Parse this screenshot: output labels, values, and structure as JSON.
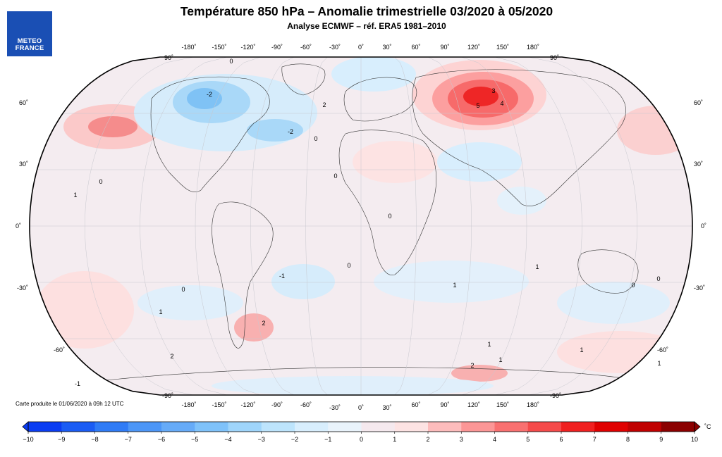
{
  "logo": {
    "line1": "METEO",
    "line2": "FRANCE"
  },
  "title": "Température 850 hPa – Anomalie trimestrielle 03/2020 à 05/2020",
  "subtitle": "Analyse ECMWF – réf. ERA5 1981–2010",
  "credit": "Carte produite le 01/06/2020 à 09h 12 UTC",
  "axes": {
    "lon_labels": [
      "-180˚",
      "-150˚",
      "-120˚",
      "-90˚",
      "-60˚",
      "-30˚",
      "0˚",
      "30˚",
      "60˚",
      "90˚",
      "120˚",
      "150˚",
      "180˚"
    ],
    "lat_labels_left": [
      "90˚",
      "60˚",
      "30˚",
      "0˚",
      "-30˚",
      "-60˚",
      "-90˚"
    ],
    "lat_labels_right": [
      "90˚",
      "60˚",
      "30˚",
      "0˚",
      "-30˚",
      "-60˚",
      "-90˚"
    ]
  },
  "colorbar": {
    "unit": "˚C",
    "labels": [
      "-10",
      "-9",
      "-8",
      "-7",
      "-6",
      "-5",
      "-4",
      "-3",
      "-2",
      "-1",
      "0",
      "1",
      "2",
      "3",
      "4",
      "5",
      "6",
      "7",
      "8",
      "9",
      "10"
    ],
    "colors": [
      "#0a3cf2",
      "#1a5cf4",
      "#2f7bf6",
      "#4c96f7",
      "#66abf8",
      "#7fc2fa",
      "#9fd5fb",
      "#bde4fc",
      "#d8eefd",
      "#e9f3fb",
      "#f5e9ee",
      "#fde3e3",
      "#fdbcbc",
      "#fc9696",
      "#f97070",
      "#f54a4a",
      "#f02020",
      "#e00000",
      "#c00000",
      "#8b0000"
    ]
  },
  "contour_labels": [
    "0",
    "-2",
    "-2",
    "2",
    "3",
    "4",
    "5",
    "0",
    "0",
    "1",
    "0",
    "0",
    "0",
    "1",
    "-1",
    "2",
    "1",
    "2",
    "1",
    "1",
    "0",
    "0",
    "1",
    "-1",
    "0",
    "1",
    "1",
    "2"
  ]
}
